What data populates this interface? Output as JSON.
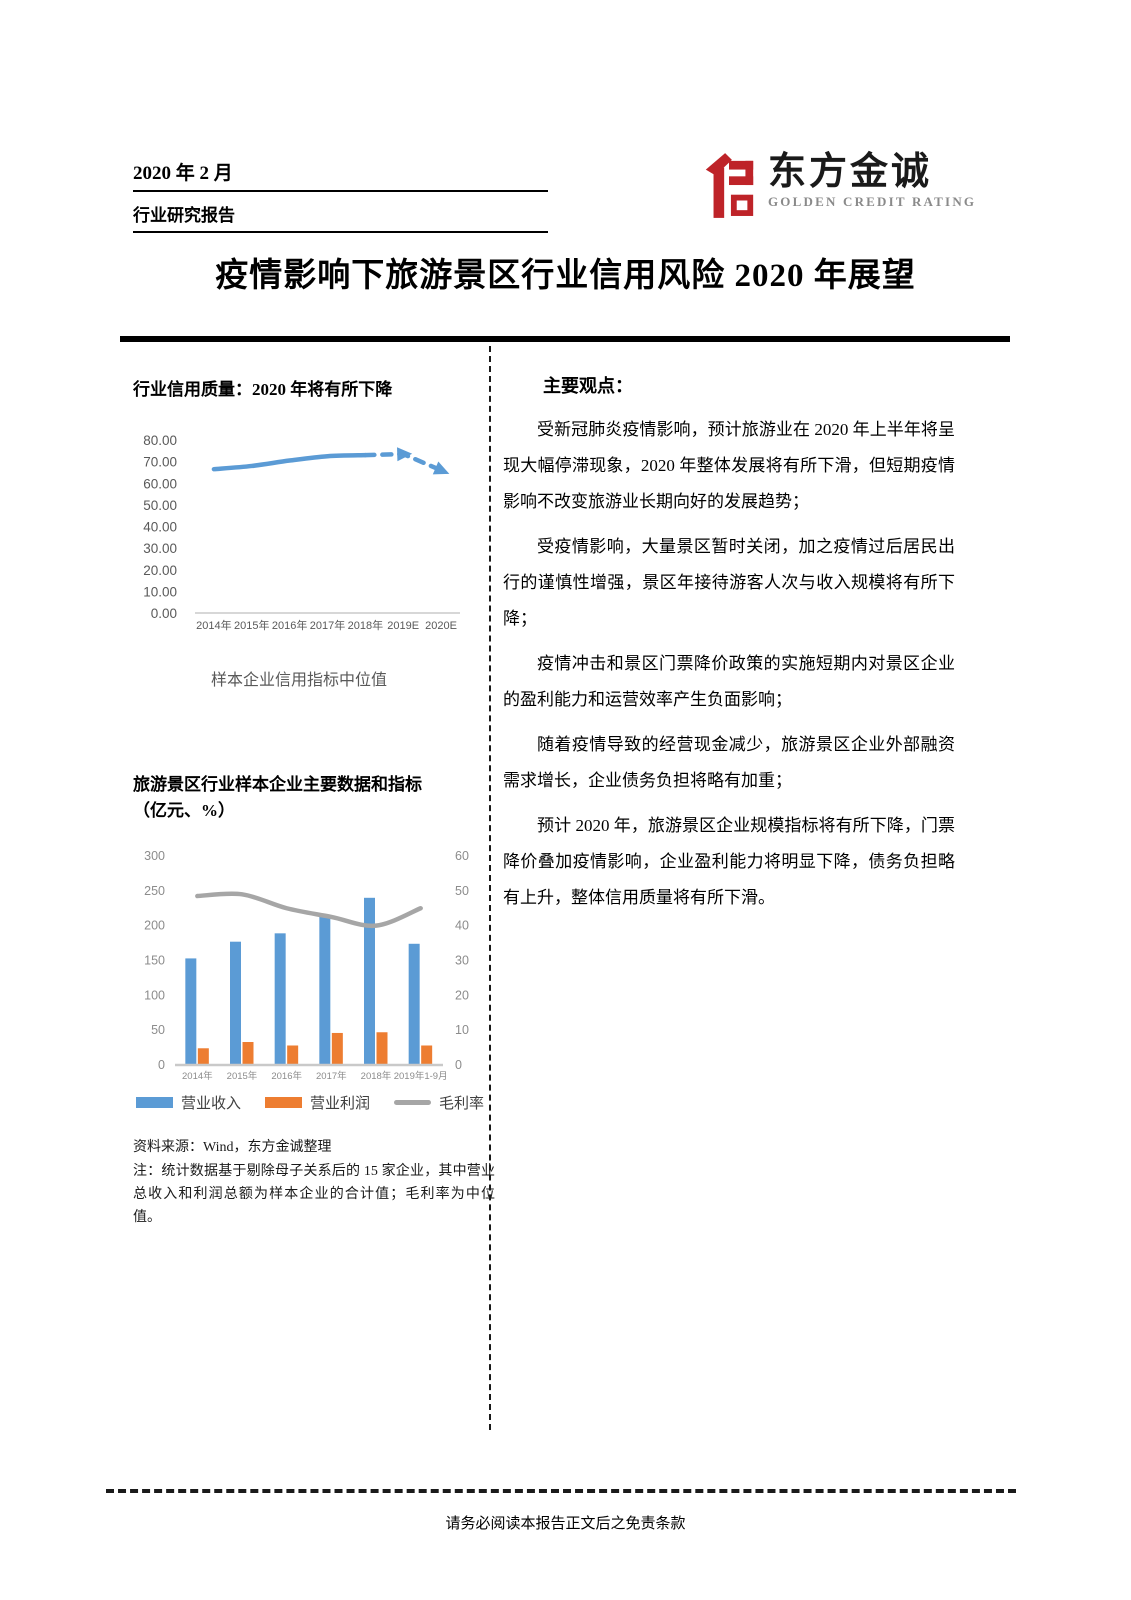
{
  "header": {
    "date": "2020 年 2 月",
    "report_type": "行业研究报告",
    "brand_cn": "东方金诚",
    "brand_en": "GOLDEN CREDIT RATING",
    "logo_color": "#be2328"
  },
  "title": "疫情影响下旅游景区行业信用风险 2020 年展望",
  "left": {
    "source": "资料来源：Wind，东方金诚整理",
    "note": "注：统计数据基于剔除母子关系后的 15 家企业，其中营业总收入和利润总额为样本企业的合计值；毛利率为中位值。"
  },
  "right": {
    "heading": "主要观点：",
    "paragraphs": [
      "受新冠肺炎疫情影响，预计旅游业在 2020 年上半年将呈现大幅停滞现象，2020 年整体发展将有所下滑，但短期疫情影响不改变旅游业长期向好的发展趋势；",
      "受疫情影响，大量景区暂时关闭，加之疫情过后居民出行的谨慎性增强，景区年接待游客人次与收入规模将有所下降；",
      "疫情冲击和景区门票降价政策的实施短期内对景区企业的盈利能力和运营效率产生负面影响；",
      "随着疫情导致的经营现金减少，旅游景区企业外部融资需求增长，企业债务负担将略有加重；",
      "预计 2020 年，旅游景区企业规模指标将有所下降，门票降价叠加疫情影响，企业盈利能力将明显下降，债务负担略有上升，整体信用质量将有所下滑。"
    ]
  },
  "footer": {
    "disclaimer": "请务必阅读本报告正文后之免责条款"
  },
  "chart_data": [
    {
      "type": "line",
      "title": "行业信用质量：2020 年将有所下降",
      "caption": "样本企业信用指标中位值",
      "categories": [
        "2014年",
        "2015年",
        "2016年",
        "2017年",
        "2018年",
        "2019E",
        "2020E"
      ],
      "values": [
        66.5,
        68.0,
        70.5,
        72.5,
        73.0,
        73.5,
        66.0
      ],
      "solid_through_index": 4,
      "ylim": [
        0,
        80
      ],
      "ytick_labels": [
        "0.00",
        "10.00",
        "20.00",
        "30.00",
        "40.00",
        "50.00",
        "60.00",
        "70.00",
        "80.00"
      ],
      "line_color": "#5B9BD5",
      "label_color": "#595959",
      "grid": false,
      "legend_position": "none"
    },
    {
      "type": "bar+line",
      "title": "旅游景区行业样本企业主要数据和指标（亿元、%）",
      "title_line1": "旅游景区行业样本企业主要数据和指标",
      "title_line2": "（亿元、%）",
      "categories": [
        "2014年",
        "2015年",
        "2016年",
        "2017年",
        "2018年",
        "2019年1-9月"
      ],
      "series": [
        {
          "name": "营业收入",
          "type": "bar",
          "axis": "left",
          "color": "#5B9BD5",
          "values": [
            153,
            177,
            189,
            213,
            240,
            174
          ]
        },
        {
          "name": "营业利润",
          "type": "bar",
          "axis": "left",
          "color": "#ED7D31",
          "values": [
            24,
            33,
            28,
            46,
            47,
            28
          ]
        },
        {
          "name": "毛利率",
          "type": "line",
          "axis": "right",
          "color": "#A6A6A6",
          "values": [
            48.5,
            49,
            45,
            42.5,
            40,
            45
          ]
        }
      ],
      "left_ylim": [
        0,
        300
      ],
      "right_ylim": [
        0,
        60
      ],
      "left_ytick_labels": [
        "0",
        "50",
        "100",
        "150",
        "200",
        "250",
        "300"
      ],
      "right_ytick_labels": [
        "0",
        "10",
        "20",
        "30",
        "40",
        "50",
        "60"
      ],
      "label_color": "#8C8C8C",
      "grid": false,
      "legend_position": "bottom"
    }
  ]
}
